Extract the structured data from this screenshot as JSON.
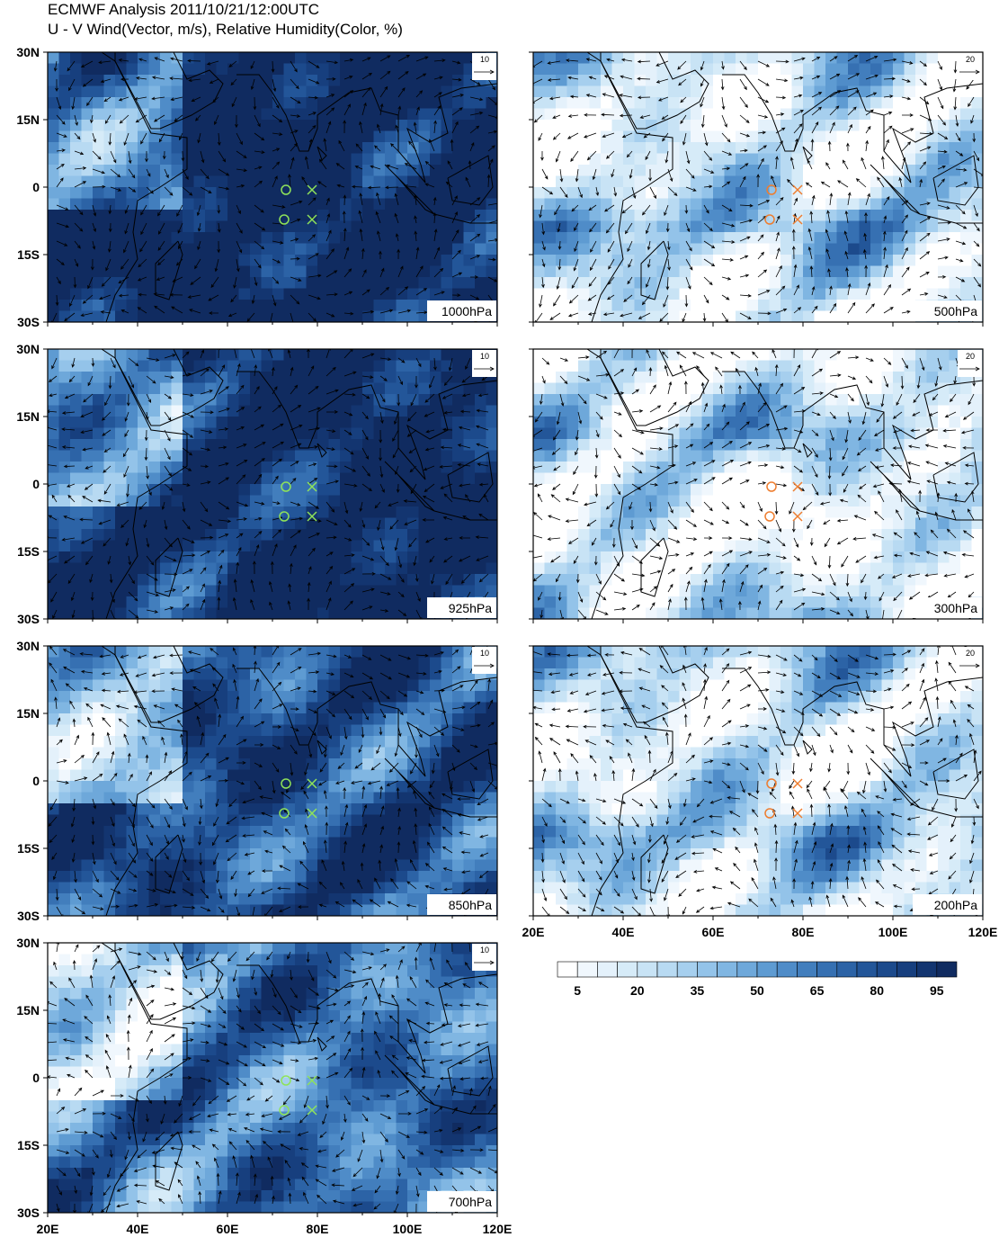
{
  "header": {
    "title": "ECMWF Analysis  2011/10/21/12:00UTC",
    "subtitle": "U - V Wind(Vector, m/s), Relative Humidity(Color, %)"
  },
  "panels": [
    {
      "level": "1000hPa",
      "ref_vector": "10"
    },
    {
      "level": "925hPa",
      "ref_vector": "10"
    },
    {
      "level": "850hPa",
      "ref_vector": "10"
    },
    {
      "level": "700hPa",
      "ref_vector": "10"
    },
    {
      "level": "500hPa",
      "ref_vector": "20"
    },
    {
      "level": "300hPa",
      "ref_vector": "20"
    },
    {
      "level": "200hPa",
      "ref_vector": "20"
    }
  ],
  "lat_labels": [
    "30N",
    "15N",
    "0",
    "15S",
    "30S"
  ],
  "lon_labels": [
    "20E",
    "40E",
    "60E",
    "80E",
    "100E",
    "120E"
  ],
  "colorbar": {
    "labels": [
      "5",
      "20",
      "35",
      "50",
      "65",
      "80",
      "95"
    ],
    "colors": [
      "#ffffff",
      "#f0f7fd",
      "#e4f1fb",
      "#d6ebf8",
      "#c8e3f5",
      "#b8daf2",
      "#a6cfee",
      "#93c3e9",
      "#80b6e2",
      "#6ea8da",
      "#5e9bd2",
      "#4f8cc8",
      "#427ebd",
      "#3670b2",
      "#2c63a6",
      "#235699",
      "#1c4a8c",
      "#173f7e",
      "#133570",
      "#102b60"
    ]
  }
}
